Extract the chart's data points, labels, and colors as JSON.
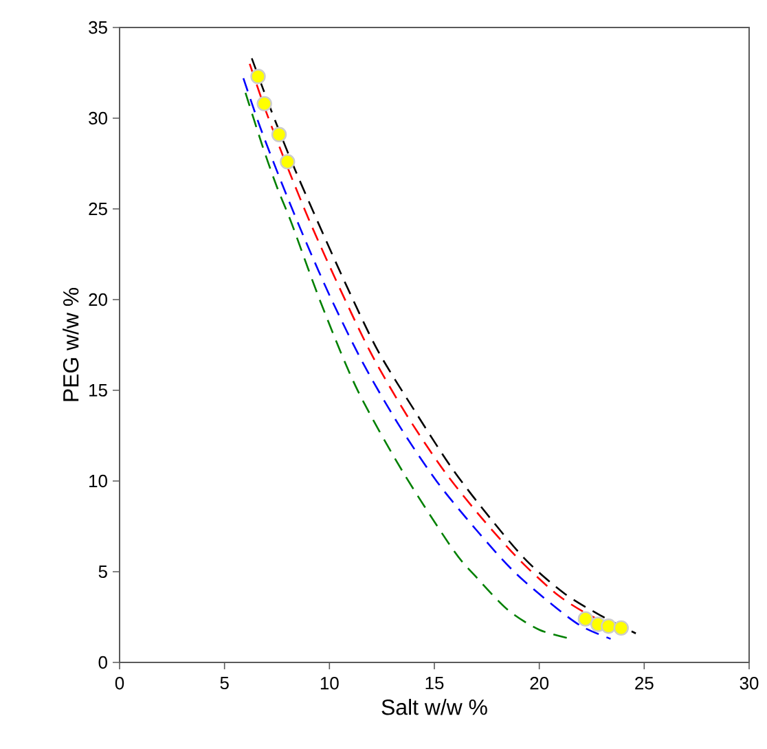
{
  "chart_data": {
    "type": "line",
    "xlabel": "Salt w/w %",
    "ylabel": "PEG w/w %",
    "xlim": [
      0,
      30
    ],
    "ylim": [
      0,
      35
    ],
    "xticks": [
      0,
      5,
      10,
      15,
      20,
      25,
      30
    ],
    "yticks": [
      0,
      5,
      10,
      15,
      20,
      25,
      30,
      35
    ],
    "line_style": "dashed",
    "marker": "none",
    "series": [
      {
        "color": "#000000",
        "x": [
          6.3,
          7.2,
          8.2,
          9.4,
          10.8,
          12.3,
          14.1,
          15.9,
          17.7,
          19.4,
          21.2,
          22.9,
          24.6
        ],
        "values": [
          33.3,
          30.5,
          27.6,
          24.4,
          20.8,
          17.2,
          13.8,
          10.6,
          7.9,
          5.6,
          3.8,
          2.6,
          1.6
        ]
      },
      {
        "color": "#ff0000",
        "x": [
          6.2,
          7.0,
          8.0,
          9.1,
          10.5,
          12.0,
          13.7,
          15.5,
          17.3,
          19.1,
          20.9,
          22.4,
          23.6
        ],
        "values": [
          33.0,
          30.3,
          27.3,
          24.2,
          20.6,
          17.0,
          13.6,
          10.5,
          7.9,
          5.6,
          3.7,
          2.6,
          2.0
        ]
      },
      {
        "color": "#0000ff",
        "x": [
          5.9,
          6.7,
          7.7,
          8.8,
          10.1,
          11.6,
          13.3,
          15.1,
          17.0,
          18.8,
          20.6,
          22.0,
          23.4
        ],
        "values": [
          32.2,
          29.5,
          26.5,
          23.4,
          20.0,
          16.5,
          13.1,
          10.0,
          7.3,
          5.0,
          3.2,
          2.0,
          1.3
        ]
      },
      {
        "color": "#008000",
        "x": [
          6.0,
          6.8,
          7.5,
          8.2,
          9.6,
          11.3,
          13.5,
          15.9,
          17.0,
          18.5,
          20.0,
          21.5
        ],
        "values": [
          31.4,
          28.5,
          26.2,
          24.2,
          19.8,
          15.1,
          10.5,
          6.2,
          4.7,
          2.9,
          1.8,
          1.3
        ]
      },
      {
        "type": "scatter",
        "marker": "circle",
        "color": "#ffff00",
        "x": [
          6.6,
          6.9,
          7.6,
          8.0,
          22.2,
          22.8,
          23.3,
          23.9
        ],
        "values": [
          32.3,
          30.8,
          29.1,
          27.6,
          2.4,
          2.1,
          2.0,
          1.9
        ]
      }
    ]
  }
}
